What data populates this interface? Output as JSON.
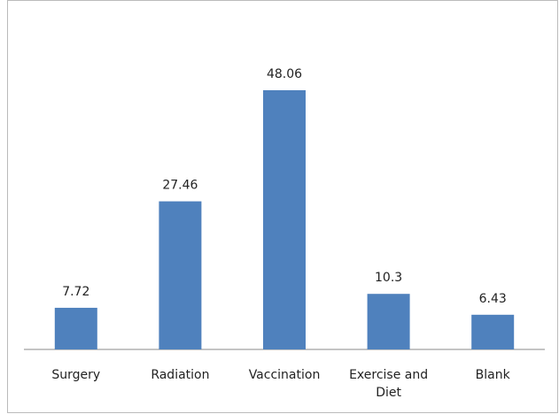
{
  "chart_data": {
    "type": "bar",
    "categories": [
      "Surgery",
      "Radiation",
      "Vaccination",
      "Exercise and Diet",
      "Blank"
    ],
    "values": [
      7.72,
      27.46,
      48.06,
      10.3,
      6.43
    ],
    "color": "#4f81bd"
  }
}
